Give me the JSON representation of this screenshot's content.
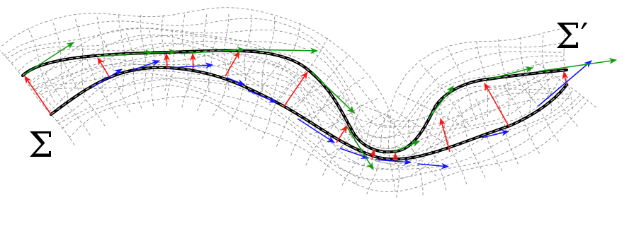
{
  "labels": {
    "lower_surface": "Σ",
    "upper_surface": "Σ′"
  },
  "colors": {
    "background": "#ffffff",
    "grid": "#8c8c8c",
    "curve": "#000000",
    "curve_highlight": "#bdbdbd",
    "lower_tangent": "#1414ff",
    "upper_tangent": "#0f9b0f",
    "connector": "#ff1414"
  },
  "diagram": {
    "lower_tangent_count": 11,
    "upper_tangent_count": 12,
    "connector_count": 12
  }
}
